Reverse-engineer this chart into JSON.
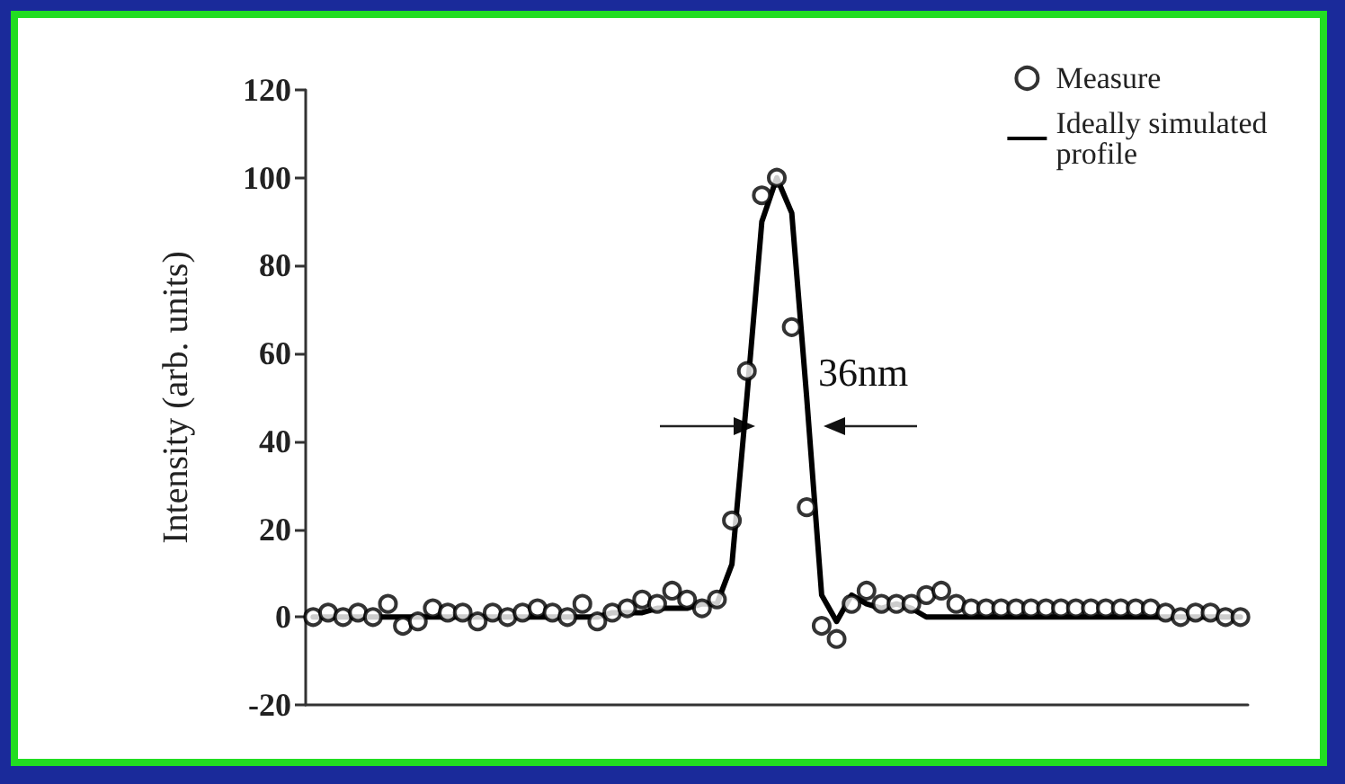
{
  "chart_data": {
    "type": "scatter",
    "ylabel": "Intensity (arb. units)",
    "categories": [
      null,
      null,
      null,
      null,
      null,
      null,
      null,
      null,
      null,
      null,
      null,
      null,
      null,
      null,
      null,
      null,
      null,
      null,
      null,
      null,
      null,
      null,
      null,
      null,
      null,
      null,
      null,
      null,
      null,
      null,
      null,
      null,
      null,
      null,
      null,
      null,
      null,
      null,
      null,
      null,
      null,
      null,
      null,
      null,
      null,
      null,
      null,
      null,
      null,
      null,
      null,
      null,
      null,
      null,
      null,
      null,
      null,
      null,
      null,
      null,
      null,
      null,
      null
    ],
    "ylim": [
      -20,
      120
    ],
    "yticks": [
      -20,
      0,
      20,
      40,
      60,
      80,
      100,
      120
    ],
    "tick_labels": "y",
    "grid": false,
    "legend": "top right",
    "annotations": [
      "36nm"
    ],
    "series": [
      {
        "name": "Measure",
        "marker": "circle",
        "color": "#000000",
        "values": [
          0,
          1,
          0,
          1,
          0,
          3,
          -2,
          -1,
          2,
          1,
          1,
          -1,
          1,
          0,
          1,
          2,
          1,
          0,
          3,
          -1,
          1,
          2,
          4,
          3,
          6,
          4,
          2,
          4,
          22,
          56,
          96,
          100,
          66,
          25,
          -2,
          -5,
          3,
          6,
          3,
          3,
          3,
          5,
          6,
          3,
          2,
          2,
          2,
          2,
          2,
          2,
          2,
          2,
          2,
          2,
          2,
          2,
          2,
          1,
          0,
          1,
          1,
          0,
          0
        ]
      },
      {
        "name": "Ideally simulated profile",
        "type": "line",
        "marker": "none",
        "line_style": "solid",
        "color": "#000000",
        "values": [
          0,
          0,
          0,
          0,
          0,
          0,
          0,
          0,
          0,
          0,
          0,
          0,
          0,
          0,
          0,
          0,
          0,
          0,
          0,
          0,
          1,
          1,
          1,
          2,
          2,
          2,
          3,
          3,
          12,
          50,
          90,
          100,
          92,
          50,
          5,
          -1,
          5,
          3,
          2,
          3,
          2,
          0,
          0,
          0,
          0,
          0,
          0,
          0,
          0,
          0,
          0,
          0,
          0,
          0,
          0,
          0,
          0,
          0,
          0,
          0,
          0,
          0,
          0
        ]
      }
    ]
  }
}
